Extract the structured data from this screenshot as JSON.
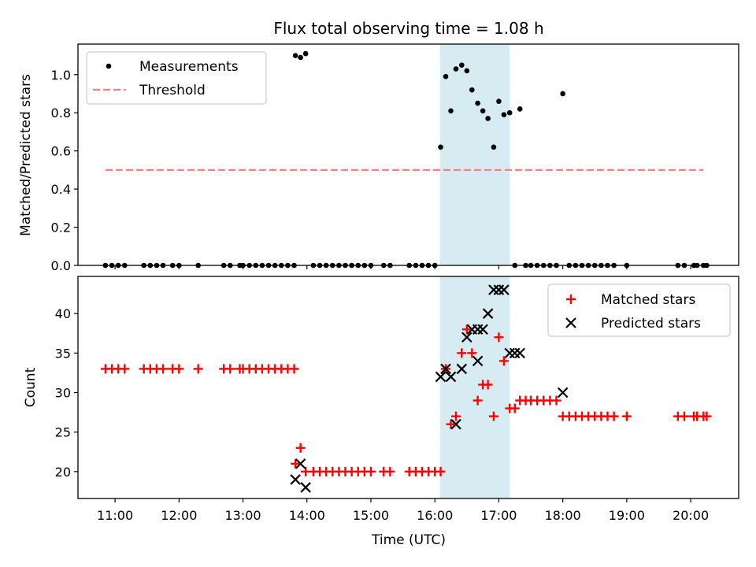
{
  "figure": {
    "title": "Flux total observing time = 1.08 h"
  },
  "chart_data": [
    {
      "type": "scatter",
      "ylabel": "Matched/Predicted stars",
      "xlim": [
        10.42,
        20.75
      ],
      "ylim": [
        0,
        1.16
      ],
      "xticks": [
        "11:00",
        "12:00",
        "13:00",
        "14:00",
        "15:00",
        "16:00",
        "17:00",
        "18:00",
        "19:00",
        "20:00"
      ],
      "yticks": [
        "0.0",
        "0.2",
        "0.4",
        "0.6",
        "0.8",
        "1.0"
      ],
      "shaded_span": [
        16.08,
        17.17
      ],
      "legend": {
        "placement": "upper-left",
        "entries": [
          "Measurements",
          "Threshold"
        ]
      },
      "threshold": {
        "name": "Threshold",
        "value": 0.5,
        "x_range": [
          10.85,
          20.2
        ],
        "color": "#ff7f7f"
      },
      "series": [
        {
          "name": "Measurements",
          "color": "#000000",
          "points": [
            [
              10.85,
              0
            ],
            [
              10.95,
              0
            ],
            [
              11.05,
              0
            ],
            [
              11.15,
              0
            ],
            [
              11.45,
              0
            ],
            [
              11.55,
              0
            ],
            [
              11.65,
              0
            ],
            [
              11.75,
              0
            ],
            [
              11.9,
              0
            ],
            [
              12.0,
              0
            ],
            [
              12.3,
              0
            ],
            [
              12.7,
              0
            ],
            [
              12.8,
              0
            ],
            [
              12.95,
              0
            ],
            [
              13.0,
              0
            ],
            [
              13.1,
              0
            ],
            [
              13.2,
              0
            ],
            [
              13.3,
              0
            ],
            [
              13.4,
              0
            ],
            [
              13.5,
              0
            ],
            [
              13.6,
              0
            ],
            [
              13.7,
              0
            ],
            [
              13.8,
              0
            ],
            [
              13.82,
              1.1
            ],
            [
              13.9,
              1.09
            ],
            [
              13.98,
              1.11
            ],
            [
              14.1,
              0
            ],
            [
              14.2,
              0
            ],
            [
              14.3,
              0
            ],
            [
              14.4,
              0
            ],
            [
              14.5,
              0
            ],
            [
              14.6,
              0
            ],
            [
              14.7,
              0
            ],
            [
              14.8,
              0
            ],
            [
              14.9,
              0
            ],
            [
              15.0,
              0
            ],
            [
              15.2,
              0
            ],
            [
              15.3,
              0
            ],
            [
              15.6,
              0
            ],
            [
              15.7,
              0
            ],
            [
              15.8,
              0
            ],
            [
              15.9,
              0
            ],
            [
              16.0,
              0
            ],
            [
              16.09,
              0.62
            ],
            [
              16.17,
              0.99
            ],
            [
              16.25,
              0.81
            ],
            [
              16.33,
              1.03
            ],
            [
              16.42,
              1.05
            ],
            [
              16.5,
              1.02
            ],
            [
              16.58,
              0.92
            ],
            [
              16.67,
              0.85
            ],
            [
              16.75,
              0.81
            ],
            [
              16.83,
              0.77
            ],
            [
              16.92,
              0.62
            ],
            [
              17.0,
              0.86
            ],
            [
              17.08,
              0.79
            ],
            [
              17.17,
              0.8
            ],
            [
              17.25,
              0
            ],
            [
              17.33,
              0.82
            ],
            [
              17.42,
              0
            ],
            [
              17.5,
              0
            ],
            [
              17.6,
              0
            ],
            [
              17.7,
              0
            ],
            [
              17.8,
              0
            ],
            [
              17.9,
              0
            ],
            [
              18.0,
              0.9
            ],
            [
              18.1,
              0
            ],
            [
              18.2,
              0
            ],
            [
              18.3,
              0
            ],
            [
              18.4,
              0
            ],
            [
              18.5,
              0
            ],
            [
              18.6,
              0
            ],
            [
              18.7,
              0
            ],
            [
              18.8,
              0
            ],
            [
              19.0,
              0
            ],
            [
              19.8,
              0
            ],
            [
              19.9,
              0
            ],
            [
              20.05,
              0
            ],
            [
              20.1,
              0
            ],
            [
              20.2,
              0
            ],
            [
              20.25,
              0
            ]
          ]
        }
      ]
    },
    {
      "type": "scatter",
      "xlabel": "Time (UTC)",
      "ylabel": "Count",
      "xlim": [
        10.42,
        20.75
      ],
      "ylim": [
        16.6,
        44.7
      ],
      "xticks": [
        "11:00",
        "12:00",
        "13:00",
        "14:00",
        "15:00",
        "16:00",
        "17:00",
        "18:00",
        "19:00",
        "20:00"
      ],
      "yticks": [
        "20",
        "25",
        "30",
        "35",
        "40"
      ],
      "shaded_span": [
        16.08,
        17.17
      ],
      "legend": {
        "placement": "upper-right",
        "entries": [
          "Matched stars",
          "Predicted stars"
        ]
      },
      "series": [
        {
          "name": "Matched stars",
          "marker": "plus",
          "color": "#ff0000",
          "points": [
            [
              10.85,
              33
            ],
            [
              10.95,
              33
            ],
            [
              11.05,
              33
            ],
            [
              11.15,
              33
            ],
            [
              11.45,
              33
            ],
            [
              11.55,
              33
            ],
            [
              11.65,
              33
            ],
            [
              11.75,
              33
            ],
            [
              11.9,
              33
            ],
            [
              12.0,
              33
            ],
            [
              12.3,
              33
            ],
            [
              12.7,
              33
            ],
            [
              12.8,
              33
            ],
            [
              12.95,
              33
            ],
            [
              13.0,
              33
            ],
            [
              13.1,
              33
            ],
            [
              13.2,
              33
            ],
            [
              13.3,
              33
            ],
            [
              13.4,
              33
            ],
            [
              13.5,
              33
            ],
            [
              13.6,
              33
            ],
            [
              13.7,
              33
            ],
            [
              13.8,
              33
            ],
            [
              13.82,
              21
            ],
            [
              13.9,
              23
            ],
            [
              13.98,
              20
            ],
            [
              14.1,
              20
            ],
            [
              14.2,
              20
            ],
            [
              14.3,
              20
            ],
            [
              14.4,
              20
            ],
            [
              14.5,
              20
            ],
            [
              14.6,
              20
            ],
            [
              14.7,
              20
            ],
            [
              14.8,
              20
            ],
            [
              14.9,
              20
            ],
            [
              15.0,
              20
            ],
            [
              15.2,
              20
            ],
            [
              15.3,
              20
            ],
            [
              15.6,
              20
            ],
            [
              15.7,
              20
            ],
            [
              15.8,
              20
            ],
            [
              15.9,
              20
            ],
            [
              16.0,
              20
            ],
            [
              16.09,
              20
            ],
            [
              16.17,
              33
            ],
            [
              16.25,
              26
            ],
            [
              16.33,
              27
            ],
            [
              16.42,
              35
            ],
            [
              16.5,
              38
            ],
            [
              16.58,
              35
            ],
            [
              16.67,
              29
            ],
            [
              16.75,
              31
            ],
            [
              16.83,
              31
            ],
            [
              16.92,
              27
            ],
            [
              17.0,
              37
            ],
            [
              17.08,
              34
            ],
            [
              17.17,
              28
            ],
            [
              17.25,
              28
            ],
            [
              17.33,
              29
            ],
            [
              17.42,
              29
            ],
            [
              17.5,
              29
            ],
            [
              17.6,
              29
            ],
            [
              17.7,
              29
            ],
            [
              17.8,
              29
            ],
            [
              17.9,
              29
            ],
            [
              18.0,
              27
            ],
            [
              18.1,
              27
            ],
            [
              18.2,
              27
            ],
            [
              18.3,
              27
            ],
            [
              18.4,
              27
            ],
            [
              18.5,
              27
            ],
            [
              18.6,
              27
            ],
            [
              18.7,
              27
            ],
            [
              18.8,
              27
            ],
            [
              19.0,
              27
            ],
            [
              19.8,
              27
            ],
            [
              19.9,
              27
            ],
            [
              20.05,
              27
            ],
            [
              20.1,
              27
            ],
            [
              20.2,
              27
            ],
            [
              20.25,
              27
            ]
          ]
        },
        {
          "name": "Predicted stars",
          "marker": "x",
          "color": "#000000",
          "points": [
            [
              13.82,
              19
            ],
            [
              13.9,
              21
            ],
            [
              13.98,
              18
            ],
            [
              16.09,
              32
            ],
            [
              16.17,
              33
            ],
            [
              16.25,
              32
            ],
            [
              16.33,
              26
            ],
            [
              16.42,
              33
            ],
            [
              16.5,
              37
            ],
            [
              16.58,
              38
            ],
            [
              16.67,
              38
            ],
            [
              16.75,
              38
            ],
            [
              16.83,
              40
            ],
            [
              16.92,
              43
            ],
            [
              16.67,
              34
            ],
            [
              17.0,
              43
            ],
            [
              17.08,
              43
            ],
            [
              17.17,
              35
            ],
            [
              17.25,
              35
            ],
            [
              17.33,
              35
            ],
            [
              18.0,
              30
            ]
          ]
        }
      ]
    }
  ]
}
